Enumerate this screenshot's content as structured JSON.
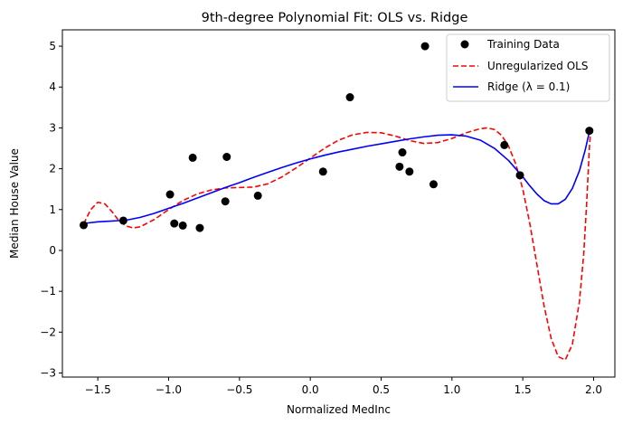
{
  "chart_data": {
    "type": "scatter",
    "title": "9th-degree Polynomial Fit: OLS vs. Ridge",
    "xlabel": "Normalized MedInc",
    "ylabel": "Median House Value",
    "xlim": [
      -1.75,
      2.15
    ],
    "ylim": [
      -3.1,
      5.4
    ],
    "xticks": [
      -1.5,
      -1.0,
      -0.5,
      0.0,
      0.5,
      1.0,
      1.5,
      2.0
    ],
    "xtick_labels": [
      "−1.5",
      "−1.0",
      "−0.5",
      "0.0",
      "0.5",
      "1.0",
      "1.5",
      "2.0"
    ],
    "yticks": [
      -3,
      -2,
      -1,
      0,
      1,
      2,
      3,
      4,
      5
    ],
    "ytick_labels": [
      "−3",
      "−2",
      "−1",
      "0",
      "1",
      "2",
      "3",
      "4",
      "5"
    ],
    "grid": false,
    "legend_position": "top-right",
    "series": [
      {
        "name": "Training Data",
        "kind": "scatter",
        "color": "#000000",
        "points": [
          [
            -1.6,
            0.62
          ],
          [
            -1.32,
            0.73
          ],
          [
            -0.99,
            1.37
          ],
          [
            -0.96,
            0.66
          ],
          [
            -0.9,
            0.61
          ],
          [
            -0.83,
            2.27
          ],
          [
            -0.78,
            0.55
          ],
          [
            -0.6,
            1.2
          ],
          [
            -0.59,
            2.29
          ],
          [
            -0.37,
            1.34
          ],
          [
            0.09,
            1.93
          ],
          [
            0.28,
            3.75
          ],
          [
            0.63,
            2.05
          ],
          [
            0.65,
            2.4
          ],
          [
            0.7,
            1.93
          ],
          [
            0.81,
            5.0
          ],
          [
            0.87,
            1.62
          ],
          [
            1.37,
            2.58
          ],
          [
            1.48,
            1.84
          ],
          [
            1.97,
            2.93
          ]
        ]
      },
      {
        "name": "Unregularized OLS",
        "kind": "line",
        "style": "dashed",
        "color": "#ff0000",
        "points": [
          [
            -1.6,
            0.65
          ],
          [
            -1.55,
            1.0
          ],
          [
            -1.5,
            1.18
          ],
          [
            -1.45,
            1.14
          ],
          [
            -1.4,
            0.95
          ],
          [
            -1.35,
            0.72
          ],
          [
            -1.3,
            0.6
          ],
          [
            -1.25,
            0.55
          ],
          [
            -1.2,
            0.58
          ],
          [
            -1.1,
            0.76
          ],
          [
            -1.0,
            1.0
          ],
          [
            -0.9,
            1.22
          ],
          [
            -0.8,
            1.38
          ],
          [
            -0.7,
            1.48
          ],
          [
            -0.6,
            1.53
          ],
          [
            -0.5,
            1.54
          ],
          [
            -0.4,
            1.55
          ],
          [
            -0.3,
            1.63
          ],
          [
            -0.2,
            1.8
          ],
          [
            -0.1,
            2.02
          ],
          [
            0.0,
            2.26
          ],
          [
            0.1,
            2.5
          ],
          [
            0.2,
            2.7
          ],
          [
            0.3,
            2.83
          ],
          [
            0.4,
            2.89
          ],
          [
            0.5,
            2.88
          ],
          [
            0.6,
            2.8
          ],
          [
            0.7,
            2.69
          ],
          [
            0.8,
            2.62
          ],
          [
            0.9,
            2.64
          ],
          [
            1.0,
            2.74
          ],
          [
            1.1,
            2.88
          ],
          [
            1.2,
            2.98
          ],
          [
            1.25,
            3.0
          ],
          [
            1.3,
            2.96
          ],
          [
            1.35,
            2.82
          ],
          [
            1.4,
            2.55
          ],
          [
            1.45,
            2.12
          ],
          [
            1.5,
            1.5
          ],
          [
            1.55,
            0.65
          ],
          [
            1.6,
            -0.35
          ],
          [
            1.65,
            -1.35
          ],
          [
            1.7,
            -2.15
          ],
          [
            1.75,
            -2.6
          ],
          [
            1.8,
            -2.68
          ],
          [
            1.85,
            -2.3
          ],
          [
            1.9,
            -1.25
          ],
          [
            1.93,
            -0.1
          ],
          [
            1.95,
            1.1
          ],
          [
            1.97,
            2.5
          ],
          [
            1.98,
            3.0
          ]
        ]
      },
      {
        "name": "Ridge (λ = 0.1)",
        "kind": "line",
        "style": "solid",
        "color": "#0000ff",
        "points": [
          [
            -1.6,
            0.66
          ],
          [
            -1.5,
            0.7
          ],
          [
            -1.4,
            0.72
          ],
          [
            -1.3,
            0.74
          ],
          [
            -1.2,
            0.81
          ],
          [
            -1.1,
            0.91
          ],
          [
            -1.0,
            1.03
          ],
          [
            -0.9,
            1.15
          ],
          [
            -0.8,
            1.28
          ],
          [
            -0.7,
            1.41
          ],
          [
            -0.6,
            1.54
          ],
          [
            -0.5,
            1.66
          ],
          [
            -0.4,
            1.79
          ],
          [
            -0.3,
            1.91
          ],
          [
            -0.2,
            2.03
          ],
          [
            -0.1,
            2.14
          ],
          [
            0.0,
            2.24
          ],
          [
            0.1,
            2.33
          ],
          [
            0.2,
            2.41
          ],
          [
            0.3,
            2.48
          ],
          [
            0.4,
            2.55
          ],
          [
            0.5,
            2.61
          ],
          [
            0.6,
            2.67
          ],
          [
            0.7,
            2.73
          ],
          [
            0.8,
            2.78
          ],
          [
            0.9,
            2.82
          ],
          [
            1.0,
            2.83
          ],
          [
            1.1,
            2.8
          ],
          [
            1.2,
            2.7
          ],
          [
            1.3,
            2.5
          ],
          [
            1.4,
            2.2
          ],
          [
            1.5,
            1.8
          ],
          [
            1.55,
            1.58
          ],
          [
            1.6,
            1.38
          ],
          [
            1.65,
            1.22
          ],
          [
            1.7,
            1.14
          ],
          [
            1.75,
            1.14
          ],
          [
            1.8,
            1.25
          ],
          [
            1.85,
            1.52
          ],
          [
            1.9,
            1.95
          ],
          [
            1.94,
            2.45
          ],
          [
            1.97,
            2.9
          ],
          [
            1.98,
            3.0
          ]
        ]
      }
    ],
    "legend": {
      "entries": [
        {
          "label": "Training Data",
          "kind": "scatter",
          "color": "#000000"
        },
        {
          "label": "Unregularized OLS",
          "kind": "line",
          "style": "dashed",
          "color": "#ff0000"
        },
        {
          "label": "Ridge (λ = 0.1)",
          "kind": "line",
          "style": "solid",
          "color": "#0000ff"
        }
      ]
    }
  }
}
